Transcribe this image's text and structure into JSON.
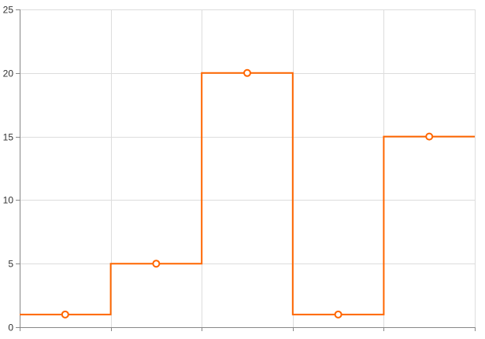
{
  "chart_data": {
    "type": "line",
    "step": true,
    "categories": [
      "",
      "",
      "",
      "",
      ""
    ],
    "series": [
      {
        "values": [
          1,
          5,
          20,
          1,
          15
        ],
        "color": "#ff6600"
      }
    ],
    "title": "",
    "xlabel": "",
    "ylabel": "",
    "ylim": [
      0,
      25
    ],
    "yticks": [
      0,
      5,
      10,
      15,
      20,
      25
    ],
    "grid": true,
    "colors": {
      "grid": "#dddddd",
      "axis": "#888888",
      "line": "#ff6600",
      "marker_fill": "#ffffff"
    }
  }
}
